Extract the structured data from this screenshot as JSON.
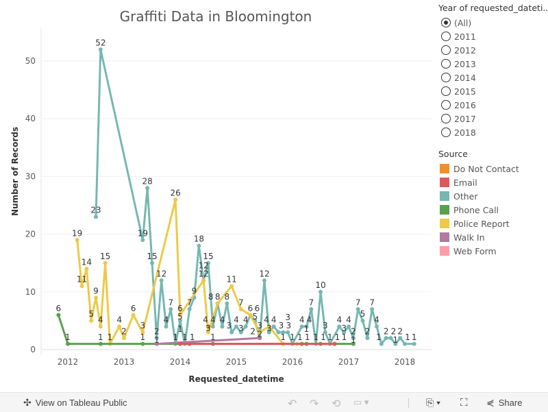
{
  "title": "Graffiti Data  in Bloomington",
  "chart_data": {
    "type": "line",
    "title": "Graffiti Data  in Bloomington",
    "xlabel": "Requested_datetime",
    "ylabel": "Number of Records",
    "x_ticks": [
      "2012",
      "2013",
      "2014",
      "2015",
      "2016",
      "2017",
      "2018"
    ],
    "y_ticks": [
      0,
      10,
      20,
      30,
      40,
      50
    ],
    "ylim": [
      0,
      55
    ],
    "xlim": [
      "2011-09",
      "2018-05"
    ],
    "grid": true,
    "series": [
      {
        "name": "Other",
        "color": "#76b7b2",
        "points": [
          [
            "2012-07",
            23
          ],
          [
            "2012-08",
            52
          ],
          [
            "2013-05",
            19
          ],
          [
            "2013-06",
            28
          ],
          [
            "2013-07",
            15
          ],
          [
            "2013-08",
            2
          ],
          [
            "2013-09",
            12
          ],
          [
            "2013-10",
            4
          ],
          [
            "2013-11",
            7
          ],
          [
            "2013-12",
            1
          ],
          [
            "2014-01",
            5
          ],
          [
            "2014-02",
            1
          ],
          [
            "2014-03",
            7
          ],
          [
            "2014-04",
            9
          ],
          [
            "2014-05",
            18
          ],
          [
            "2014-06",
            12
          ],
          [
            "2014-07",
            15
          ],
          [
            "2014-08",
            4
          ],
          [
            "2014-09",
            8
          ],
          [
            "2014-10",
            4
          ],
          [
            "2014-11",
            8
          ],
          [
            "2014-12",
            3
          ],
          [
            "2015-01",
            4
          ],
          [
            "2015-02",
            3
          ],
          [
            "2015-03",
            4
          ],
          [
            "2015-04",
            6
          ],
          [
            "2015-05",
            5
          ],
          [
            "2015-06",
            2
          ],
          [
            "2015-07",
            12
          ],
          [
            "2015-08",
            3
          ],
          [
            "2015-09",
            4
          ],
          [
            "2015-10",
            3
          ],
          [
            "2015-11",
            3
          ],
          [
            "2015-12",
            3
          ],
          [
            "2016-01",
            1
          ],
          [
            "2016-03",
            4
          ],
          [
            "2016-04",
            4
          ],
          [
            "2016-05",
            7
          ],
          [
            "2016-06",
            1
          ],
          [
            "2016-07",
            10
          ],
          [
            "2016-08",
            3
          ],
          [
            "2016-09",
            1
          ],
          [
            "2016-11",
            4
          ],
          [
            "2016-12",
            3
          ],
          [
            "2017-01",
            4
          ],
          [
            "2017-02",
            2
          ],
          [
            "2017-03",
            7
          ],
          [
            "2017-04",
            5
          ],
          [
            "2017-05",
            2
          ],
          [
            "2017-06",
            7
          ],
          [
            "2017-07",
            4
          ],
          [
            "2017-08",
            1
          ],
          [
            "2017-09",
            2
          ],
          [
            "2017-10",
            2
          ],
          [
            "2017-11",
            1
          ],
          [
            "2017-12",
            2
          ],
          [
            "2018-01",
            1
          ],
          [
            "2018-03",
            1
          ]
        ]
      },
      {
        "name": "Police Report",
        "color": "#edc948",
        "points": [
          [
            "2012-03",
            19
          ],
          [
            "2012-04",
            11
          ],
          [
            "2012-05",
            14
          ],
          [
            "2012-06",
            5
          ],
          [
            "2012-07",
            9
          ],
          [
            "2012-08",
            4
          ],
          [
            "2012-09",
            15
          ],
          [
            "2012-10",
            1
          ],
          [
            "2012-12",
            4
          ],
          [
            "2013-01",
            2
          ],
          [
            "2013-03",
            6
          ],
          [
            "2013-05",
            3
          ],
          [
            "2013-12",
            26
          ],
          [
            "2014-01",
            6
          ],
          [
            "2014-06",
            12
          ],
          [
            "2014-07",
            3
          ],
          [
            "2014-09",
            8
          ],
          [
            "2014-12",
            11
          ],
          [
            "2015-02",
            7
          ],
          [
            "2015-04",
            6
          ],
          [
            "2015-06",
            3
          ],
          [
            "2015-08",
            4
          ],
          [
            "2015-11",
            1
          ],
          [
            "2016-02",
            1
          ]
        ]
      },
      {
        "name": "Phone Call",
        "color": "#59a14f",
        "points": [
          [
            "2011-11",
            6
          ],
          [
            "2012-01",
            1
          ],
          [
            "2012-08",
            1
          ],
          [
            "2013-05",
            1
          ],
          [
            "2014-03",
            1
          ],
          [
            "2014-08",
            1
          ],
          [
            "2016-03",
            1
          ],
          [
            "2016-04",
            1
          ],
          [
            "2016-07",
            1
          ],
          [
            "2016-10",
            1
          ],
          [
            "2017-02",
            1
          ]
        ]
      },
      {
        "name": "Walk In",
        "color": "#b07aa1",
        "points": [
          [
            "2013-08",
            1
          ],
          [
            "2015-06",
            2
          ]
        ]
      },
      {
        "name": "Email",
        "color": "#e15759",
        "points": [
          [
            "2014-01",
            1
          ],
          [
            "2016-10",
            1
          ]
        ]
      },
      {
        "name": "Do Not Contact",
        "color": "#f28e2b",
        "points": [
          [
            "2014-07",
            4
          ]
        ]
      },
      {
        "name": "Web Form",
        "color": "#ff9da7",
        "points": []
      }
    ]
  },
  "filter": {
    "title": "Year of requested_dateti...",
    "options": [
      "(All)",
      "2011",
      "2012",
      "2013",
      "2014",
      "2015",
      "2016",
      "2017",
      "2018"
    ],
    "selected": "(All)"
  },
  "legend": {
    "title": "Source",
    "items": [
      {
        "label": "Do Not Contact",
        "color": "#f28e2b"
      },
      {
        "label": "Email",
        "color": "#e15759"
      },
      {
        "label": "Other",
        "color": "#76b7b2"
      },
      {
        "label": "Phone Call",
        "color": "#59a14f"
      },
      {
        "label": "Police Report",
        "color": "#edc948"
      },
      {
        "label": "Walk In",
        "color": "#b07aa1"
      },
      {
        "label": "Web Form",
        "color": "#ff9da7"
      }
    ]
  },
  "toolbar": {
    "view_label": "View on Tableau Public",
    "share_label": "Share",
    "icons": [
      "tableau-logo-icon",
      "undo-icon",
      "redo-icon",
      "revert-icon",
      "pause-icon",
      "download-icon",
      "fullscreen-icon",
      "share-icon"
    ]
  }
}
